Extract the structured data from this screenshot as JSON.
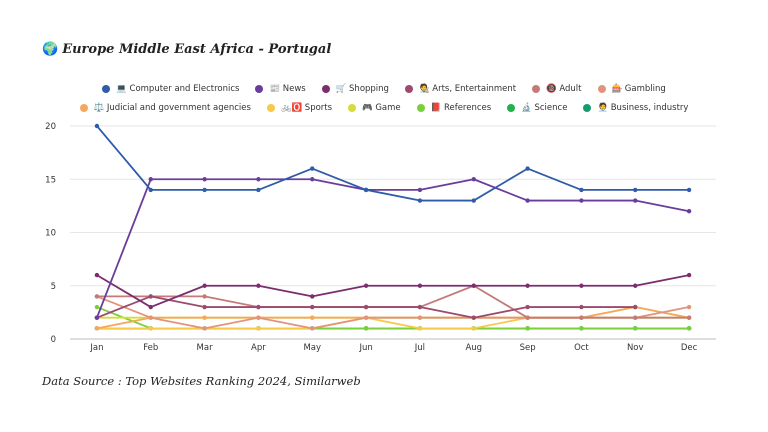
{
  "title_icon": "🌍",
  "title": "Europe Middle East Africa - Portugal",
  "source": "Data Source : Top Websites Ranking 2024, Similarweb",
  "chart_data": {
    "type": "line",
    "categories": [
      "Jan",
      "Feb",
      "Mar",
      "Apr",
      "May",
      "Jun",
      "Jul",
      "Aug",
      "Sep",
      "Oct",
      "Nov",
      "Dec"
    ],
    "ylim": [
      0,
      20
    ],
    "yticks": [
      0,
      5,
      10,
      15,
      20
    ],
    "grid": true,
    "legend_position": "top",
    "series": [
      {
        "name": "💻 Computer and Electronics",
        "color": "#2f5ba8",
        "values": [
          20,
          14,
          14,
          14,
          16,
          14,
          13,
          13,
          16,
          14,
          14,
          14
        ]
      },
      {
        "name": "📰 News",
        "color": "#6a3d9a",
        "values": [
          2,
          15,
          15,
          15,
          15,
          14,
          14,
          15,
          13,
          13,
          13,
          12
        ]
      },
      {
        "name": "🛒 Shopping",
        "color": "#7b2d6e",
        "values": [
          6,
          3,
          5,
          5,
          4,
          5,
          5,
          5,
          5,
          5,
          5,
          6
        ]
      },
      {
        "name": "🧑‍🎨 Arts, Entertainment",
        "color": "#9c4a6d",
        "values": [
          2,
          4,
          3,
          3,
          3,
          3,
          3,
          2,
          3,
          3,
          3,
          null
        ]
      },
      {
        "name": "🔞 Adult",
        "color": "#c47a7a",
        "values": [
          4,
          4,
          4,
          3,
          3,
          3,
          3,
          5,
          2,
          2,
          2,
          2
        ]
      },
      {
        "name": "🎰 Gambling",
        "color": "#e0957a",
        "values": [
          4,
          2,
          1,
          2,
          1,
          2,
          2,
          2,
          2,
          2,
          2,
          3
        ]
      },
      {
        "name": "⚖️ Judicial and government agencies",
        "color": "#f5a85c",
        "values": [
          1,
          2,
          2,
          2,
          2,
          2,
          2,
          2,
          2,
          2,
          3,
          2
        ]
      },
      {
        "name": "🚲🅾️ Sports",
        "color": "#f7c948",
        "values": [
          1,
          1,
          1,
          1,
          1,
          2,
          1,
          1,
          2,
          2,
          3,
          2
        ]
      },
      {
        "name": "🎮 Game",
        "color": "#d7dc3a",
        "values": [
          2,
          2,
          2,
          2,
          2,
          2,
          2,
          2,
          2,
          2,
          2,
          2
        ]
      },
      {
        "name": "📕 References",
        "color": "#7ad03a",
        "values": [
          3,
          1,
          1,
          1,
          1,
          1,
          1,
          1,
          1,
          1,
          1,
          1
        ]
      },
      {
        "name": "🔬 Science",
        "color": "#22b14c",
        "values": [
          1,
          1,
          1,
          1,
          1,
          1,
          1,
          1,
          1,
          1,
          1,
          1
        ]
      },
      {
        "name": "🧑‍💼 Business, industry",
        "color": "#1a9a70",
        "values": [
          1,
          1,
          1,
          1,
          1,
          1,
          1,
          1,
          1,
          1,
          1,
          1
        ]
      }
    ]
  }
}
